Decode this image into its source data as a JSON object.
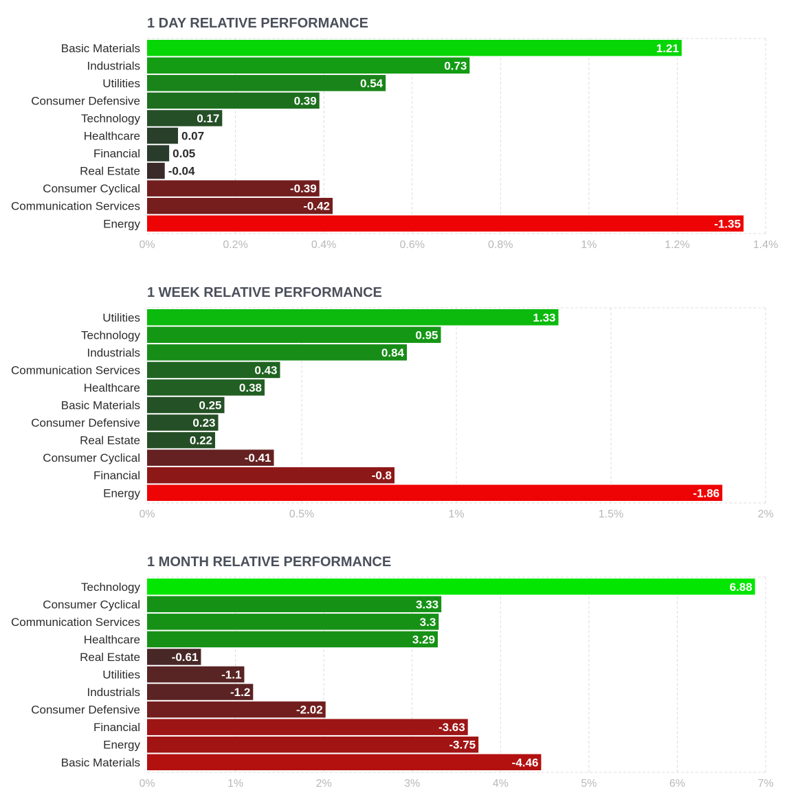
{
  "chart_data": [
    {
      "type": "bar",
      "orientation": "horizontal",
      "title": "1 DAY RELATIVE PERFORMANCE",
      "categories": [
        "Basic Materials",
        "Industrials",
        "Utilities",
        "Consumer Defensive",
        "Technology",
        "Healthcare",
        "Financial",
        "Real Estate",
        "Consumer Cyclical",
        "Communication Services",
        "Energy"
      ],
      "values": [
        1.21,
        0.73,
        0.54,
        0.39,
        0.17,
        0.07,
        0.05,
        -0.04,
        -0.39,
        -0.42,
        -1.35
      ],
      "value_labels": [
        "1.21",
        "0.73",
        "0.54",
        "0.39",
        "0.17",
        "0.07",
        "0.05",
        "-0.04",
        "-0.39",
        "-0.42",
        "-1.35"
      ],
      "xlim": [
        0,
        1.4
      ],
      "ticks": [
        0,
        0.2,
        0.4,
        0.6,
        0.8,
        1,
        1.2,
        1.4
      ],
      "tick_labels": [
        "0%",
        "0.2%",
        "0.4%",
        "0.6%",
        "0.8%",
        "1%",
        "1.2%",
        "1.4%"
      ],
      "bar_length": "absolute value",
      "grid": true
    },
    {
      "type": "bar",
      "orientation": "horizontal",
      "title": "1 WEEK RELATIVE PERFORMANCE",
      "categories": [
        "Utilities",
        "Technology",
        "Industrials",
        "Communication Services",
        "Healthcare",
        "Basic Materials",
        "Consumer Defensive",
        "Real Estate",
        "Consumer Cyclical",
        "Financial",
        "Energy"
      ],
      "values": [
        1.33,
        0.95,
        0.84,
        0.43,
        0.38,
        0.25,
        0.23,
        0.22,
        -0.41,
        -0.8,
        -1.86
      ],
      "value_labels": [
        "1.33",
        "0.95",
        "0.84",
        "0.43",
        "0.38",
        "0.25",
        "0.23",
        "0.22",
        "-0.41",
        "-0.8",
        "-1.86"
      ],
      "xlim": [
        0,
        2
      ],
      "ticks": [
        0,
        0.5,
        1,
        1.5,
        2
      ],
      "tick_labels": [
        "0%",
        "0.5%",
        "1%",
        "1.5%",
        "2%"
      ],
      "bar_length": "absolute value",
      "grid": true
    },
    {
      "type": "bar",
      "orientation": "horizontal",
      "title": "1 MONTH RELATIVE PERFORMANCE",
      "categories": [
        "Technology",
        "Consumer Cyclical",
        "Communication Services",
        "Healthcare",
        "Real Estate",
        "Utilities",
        "Industrials",
        "Consumer Defensive",
        "Financial",
        "Energy",
        "Basic Materials"
      ],
      "values": [
        6.88,
        3.33,
        3.3,
        3.29,
        -0.61,
        -1.1,
        -1.2,
        -2.02,
        -3.63,
        -3.75,
        -4.46
      ],
      "value_labels": [
        "6.88",
        "3.33",
        "3.3",
        "3.29",
        "-0.61",
        "-1.1",
        "-1.2",
        "-2.02",
        "-3.63",
        "-3.75",
        "-4.46"
      ],
      "xlim": [
        0,
        7
      ],
      "ticks": [
        0,
        1,
        2,
        3,
        4,
        5,
        6,
        7
      ],
      "tick_labels": [
        "0%",
        "1%",
        "2%",
        "3%",
        "4%",
        "5%",
        "6%",
        "7%"
      ],
      "bar_length": "absolute value",
      "grid": true
    }
  ]
}
